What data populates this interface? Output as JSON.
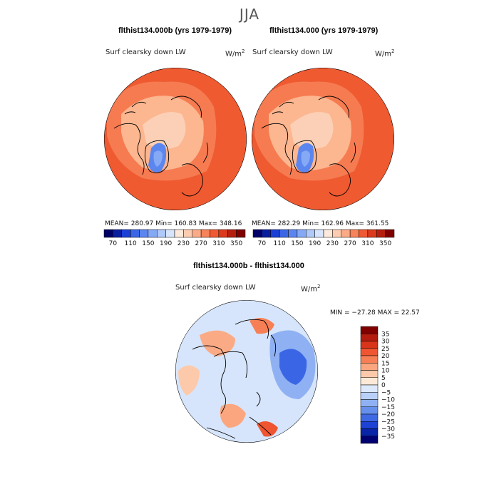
{
  "figure": {
    "season": "JJA",
    "panel_left": {
      "title": "flthist134.000b (yrs 1979-1979)",
      "variable": "Surf clearsky down LW",
      "units_base": "W/m",
      "units_exp": "2",
      "stats": "MEAN= 280.97   Min= 160.83   Max= 348.16"
    },
    "panel_right": {
      "title": "flthist134.000 (yrs 1979-1979)",
      "variable": "Surf clearsky down LW",
      "units_base": "W/m",
      "units_exp": "2",
      "stats": "MEAN= 282.29   Min= 162.96   Max= 361.55"
    },
    "panel_diff": {
      "title": "flthist134.000b - flthist134.000",
      "variable": "Surf clearsky down LW",
      "units_base": "W/m",
      "units_exp": "2",
      "stats": "MIN = −27.28  MAX =  22.57"
    },
    "top_colorbar": {
      "labels": [
        "70",
        "110",
        "150",
        "190",
        "230",
        "270",
        "310",
        "350"
      ],
      "colors": [
        "#000066",
        "#0a1f9e",
        "#1a40d6",
        "#3a66e6",
        "#5c86ef",
        "#85a9f5",
        "#afc9f9",
        "#d6e5fb",
        "#fde9db",
        "#fcccb0",
        "#fbaa86",
        "#f7835a",
        "#f05a33",
        "#db3a1c",
        "#b41f0e",
        "#800000"
      ]
    },
    "diff_colorbar": {
      "labels": [
        "35",
        "30",
        "25",
        "20",
        "15",
        "10",
        "5",
        "0",
        "−5",
        "−10",
        "−15",
        "−20",
        "−25",
        "−30",
        "−35"
      ],
      "colors": [
        "#800000",
        "#b31c0e",
        "#d8351a",
        "#ef5530",
        "#f77f55",
        "#fba67f",
        "#fccaaa",
        "#fde9d8",
        "#dce8fb",
        "#b9d1f8",
        "#8fb1f3",
        "#6690ec",
        "#3e69e3",
        "#1d42d4",
        "#0a24a8",
        "#000070"
      ]
    },
    "map_colors": {
      "warm_fill": "#ef5a31",
      "mid_fill": "#fcb690",
      "cool_fill": "#5c86ef",
      "diff_base": "#d6e5fb",
      "diff_pos": "#fbaa86",
      "diff_neg": "#3a66e6",
      "coast": "#000000"
    }
  }
}
